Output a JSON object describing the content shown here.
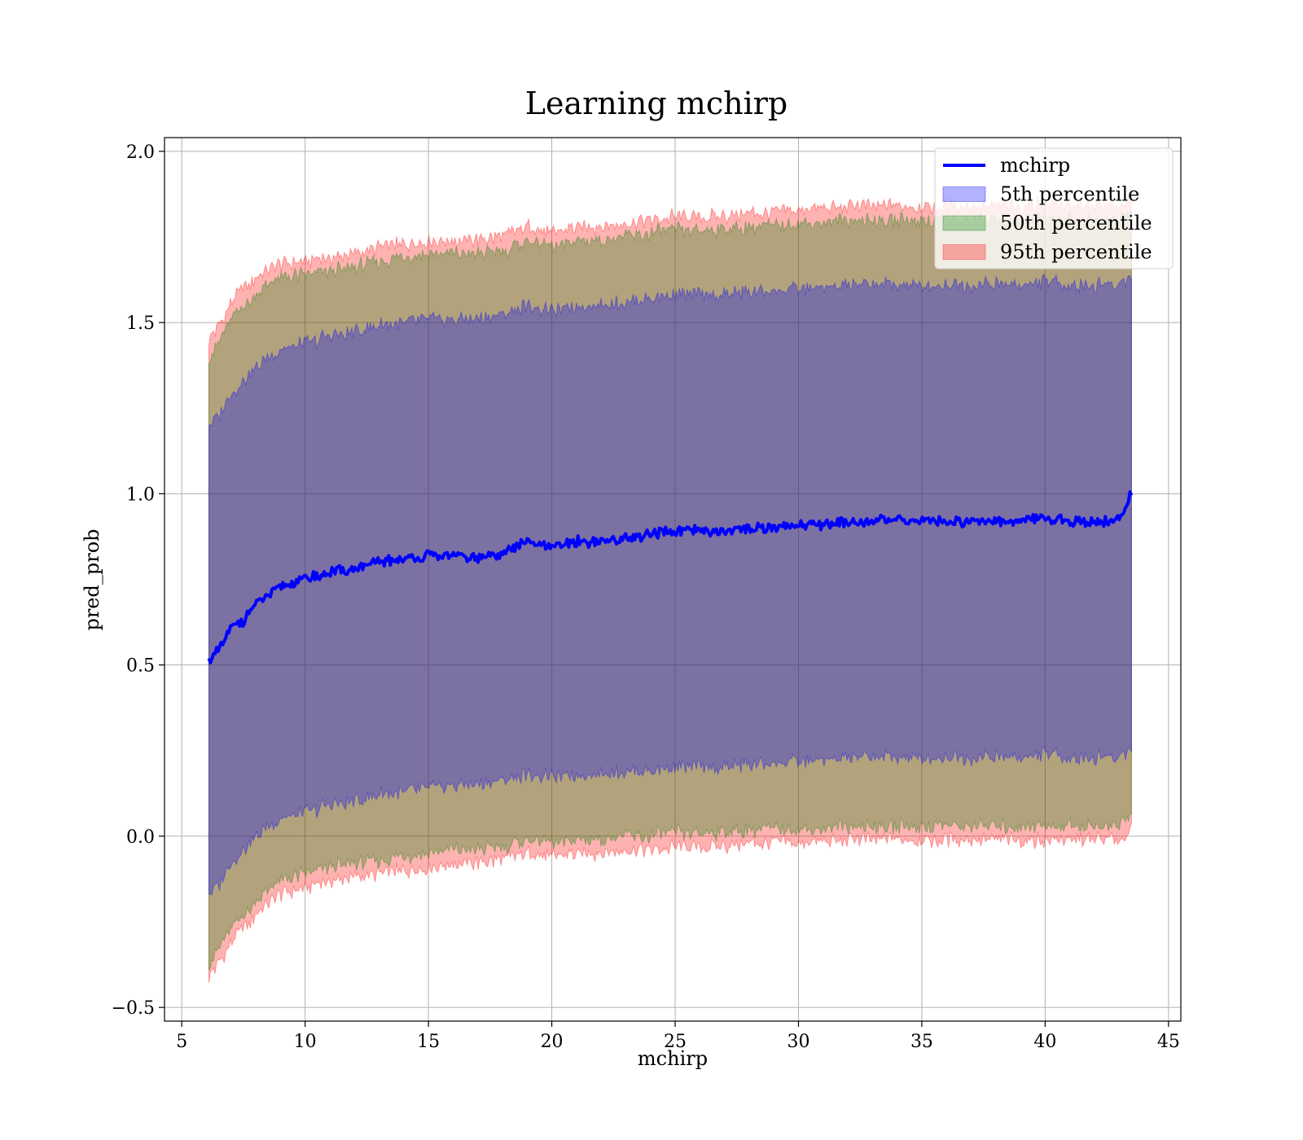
{
  "chart_data": {
    "type": "line",
    "title": "Learning mchirp",
    "xlabel": "mchirp",
    "ylabel": "pred_prob",
    "xlim": [
      4.3,
      45.5
    ],
    "ylim": [
      -0.54,
      2.04
    ],
    "xticks": [
      5,
      10,
      15,
      20,
      25,
      30,
      35,
      40,
      45
    ],
    "yticks": [
      -0.5,
      0.0,
      0.5,
      1.0,
      1.5,
      2.0
    ],
    "xtick_labels": [
      "5",
      "10",
      "15",
      "20",
      "25",
      "30",
      "35",
      "40",
      "45"
    ],
    "ytick_labels": [
      "−0.5",
      "0.0",
      "0.5",
      "1.0",
      "1.5",
      "2.0"
    ],
    "grid": true,
    "legend_position": "top-right",
    "legend": [
      {
        "label": "mchirp",
        "kind": "line",
        "color": "#0000ff"
      },
      {
        "label": "5th percentile",
        "kind": "patch",
        "color": "#0000ff"
      },
      {
        "label": "50th percentile",
        "kind": "patch",
        "color": "#008000"
      },
      {
        "label": "95th percentile",
        "kind": "patch",
        "color": "#ff0000"
      }
    ],
    "x": [
      6.1,
      6.5,
      7.0,
      7.5,
      8.0,
      8.5,
      9.0,
      10,
      11,
      12,
      13,
      14,
      15,
      16,
      17,
      18,
      19,
      20,
      21,
      22,
      23,
      24,
      25,
      26,
      27,
      28,
      29,
      30,
      31,
      32,
      33,
      34,
      35,
      36,
      37,
      38,
      39,
      40,
      41,
      42,
      43,
      43.5
    ],
    "series": [
      {
        "name": "mchirp",
        "color": "#0000ff",
        "values": [
          0.51,
          0.54,
          0.61,
          0.63,
          0.68,
          0.7,
          0.73,
          0.75,
          0.77,
          0.78,
          0.8,
          0.81,
          0.82,
          0.82,
          0.81,
          0.83,
          0.86,
          0.84,
          0.86,
          0.86,
          0.87,
          0.88,
          0.89,
          0.89,
          0.89,
          0.9,
          0.9,
          0.91,
          0.91,
          0.92,
          0.92,
          0.92,
          0.92,
          0.92,
          0.92,
          0.92,
          0.92,
          0.93,
          0.92,
          0.92,
          0.92,
          1.0
        ]
      }
    ],
    "bands": [
      {
        "name": "5th percentile",
        "color": "#0000ff",
        "lower": [
          -0.17,
          -0.14,
          -0.08,
          -0.04,
          0.0,
          0.03,
          0.05,
          0.07,
          0.09,
          0.1,
          0.12,
          0.13,
          0.14,
          0.15,
          0.15,
          0.16,
          0.18,
          0.17,
          0.18,
          0.18,
          0.19,
          0.19,
          0.2,
          0.2,
          0.2,
          0.21,
          0.21,
          0.22,
          0.22,
          0.23,
          0.23,
          0.23,
          0.23,
          0.23,
          0.23,
          0.23,
          0.23,
          0.24,
          0.23,
          0.23,
          0.23,
          0.26
        ],
        "upper": [
          1.2,
          1.23,
          1.29,
          1.33,
          1.37,
          1.4,
          1.42,
          1.44,
          1.46,
          1.47,
          1.49,
          1.5,
          1.51,
          1.51,
          1.51,
          1.52,
          1.55,
          1.53,
          1.55,
          1.55,
          1.56,
          1.57,
          1.58,
          1.58,
          1.58,
          1.59,
          1.59,
          1.6,
          1.6,
          1.61,
          1.61,
          1.61,
          1.61,
          1.61,
          1.61,
          1.61,
          1.61,
          1.62,
          1.61,
          1.61,
          1.61,
          1.64
        ]
      },
      {
        "name": "50th percentile",
        "color": "#008000",
        "lower": [
          -0.37,
          -0.33,
          -0.27,
          -0.23,
          -0.19,
          -0.16,
          -0.13,
          -0.11,
          -0.09,
          -0.08,
          -0.07,
          -0.06,
          -0.05,
          -0.04,
          -0.04,
          -0.03,
          -0.01,
          -0.02,
          -0.01,
          -0.01,
          0.0,
          0.0,
          0.01,
          0.01,
          0.01,
          0.02,
          0.02,
          0.02,
          0.02,
          0.03,
          0.03,
          0.03,
          0.03,
          0.03,
          0.03,
          0.03,
          0.03,
          0.03,
          0.03,
          0.03,
          0.03,
          0.07
        ],
        "upper": [
          1.4,
          1.44,
          1.51,
          1.55,
          1.58,
          1.61,
          1.63,
          1.64,
          1.65,
          1.66,
          1.68,
          1.69,
          1.7,
          1.7,
          1.7,
          1.71,
          1.74,
          1.72,
          1.74,
          1.74,
          1.75,
          1.76,
          1.77,
          1.77,
          1.77,
          1.78,
          1.78,
          1.79,
          1.79,
          1.8,
          1.8,
          1.8,
          1.8,
          1.8,
          1.8,
          1.8,
          1.8,
          1.81,
          1.8,
          1.8,
          1.8,
          1.83
        ]
      },
      {
        "name": "95th percentile",
        "color": "#ff0000",
        "lower": [
          -0.41,
          -0.37,
          -0.31,
          -0.27,
          -0.23,
          -0.2,
          -0.17,
          -0.15,
          -0.13,
          -0.12,
          -0.11,
          -0.1,
          -0.09,
          -0.08,
          -0.08,
          -0.07,
          -0.05,
          -0.06,
          -0.05,
          -0.05,
          -0.04,
          -0.04,
          -0.03,
          -0.03,
          -0.03,
          -0.02,
          -0.02,
          -0.02,
          -0.02,
          -0.01,
          -0.01,
          -0.01,
          -0.01,
          -0.01,
          -0.01,
          -0.01,
          -0.01,
          -0.01,
          -0.01,
          -0.01,
          -0.01,
          0.02
        ],
        "upper": [
          1.45,
          1.49,
          1.56,
          1.6,
          1.63,
          1.65,
          1.67,
          1.68,
          1.69,
          1.7,
          1.72,
          1.73,
          1.74,
          1.74,
          1.74,
          1.75,
          1.78,
          1.76,
          1.78,
          1.78,
          1.79,
          1.8,
          1.81,
          1.81,
          1.81,
          1.82,
          1.82,
          1.83,
          1.83,
          1.84,
          1.84,
          1.84,
          1.84,
          1.84,
          1.84,
          1.84,
          1.84,
          1.85,
          1.84,
          1.84,
          1.84,
          1.88
        ]
      }
    ]
  }
}
